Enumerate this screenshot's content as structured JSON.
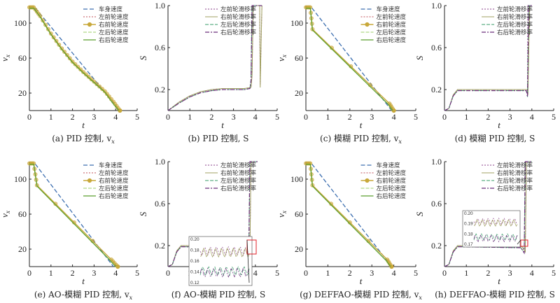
{
  "colors": {
    "body": "#3d6fb0",
    "fl": "#c0505a",
    "fr": "#c8a83a",
    "rl": "#9ecf6a",
    "rr": "#5a9e2e",
    "slip_fl": "#8a3e8a",
    "slip_fr": "#a0a060",
    "slip_rl": "#3a9e6a",
    "slip_rr": "#6a2e7a",
    "zoom_box": "#e0202a"
  },
  "chart_data": [
    {
      "type": "line",
      "caption": "(a) PID 控制, v",
      "caption_sub": "x",
      "xlabel": "t",
      "ylabel": "v",
      "ylabel_sub": "x",
      "xlim": [
        0,
        5
      ],
      "ylim": [
        0,
        120
      ],
      "xticks": [
        0,
        1,
        2,
        3,
        4,
        5
      ],
      "yticks": [
        20,
        60,
        100
      ],
      "legend": [
        "车身速度",
        "左前轮速度",
        "右前轮速度",
        "左后轮速度",
        "右后轮速度"
      ],
      "series": [
        {
          "key": "body",
          "x": [
            0,
            0.25,
            4.2
          ],
          "y": [
            118,
            118,
            0
          ]
        },
        {
          "key": "fl",
          "x": [
            0,
            0.2,
            0.5,
            1,
            1.5,
            2,
            2.5,
            3,
            3.5,
            3.9,
            4.2
          ],
          "y": [
            118,
            118,
            108,
            88,
            71,
            56,
            44,
            33,
            22,
            10,
            0
          ]
        },
        {
          "key": "fr",
          "x": [
            0,
            0.2,
            0.5,
            1,
            1.5,
            2,
            2.5,
            3,
            3.5,
            3.9,
            4.2
          ],
          "y": [
            118,
            118,
            108,
            88,
            71,
            56,
            44,
            33,
            22,
            10,
            0
          ]
        },
        {
          "key": "rl",
          "x": [
            0,
            0.2,
            0.5,
            1,
            1.5,
            2,
            2.5,
            3,
            3.5,
            3.85,
            4.15
          ],
          "y": [
            117,
            117,
            107,
            87,
            70,
            55,
            43,
            32,
            21,
            9,
            0
          ]
        },
        {
          "key": "rr",
          "x": [
            0,
            0.2,
            0.5,
            1,
            1.5,
            2,
            2.5,
            3,
            3.5,
            3.85,
            4.15
          ],
          "y": [
            117,
            117,
            107,
            87,
            70,
            55,
            43,
            32,
            21,
            9,
            0
          ]
        }
      ]
    },
    {
      "type": "line",
      "caption": "(b) PID 控制, S",
      "xlabel": "t",
      "ylabel": "S",
      "xlim": [
        0,
        5
      ],
      "ylim": [
        0,
        1
      ],
      "xticks": [
        0,
        1,
        2,
        3,
        4,
        5
      ],
      "yticks": [
        0.2,
        0.6,
        1.0
      ],
      "legend": [
        "左前轮滑移率",
        "右前轮滑移率",
        "左后轮滑移率",
        "右后轮滑移率"
      ],
      "series": [
        {
          "key": "slip_fl",
          "x": [
            0,
            0.5,
            1,
            1.5,
            2,
            2.5,
            3,
            3.5,
            3.8,
            3.85,
            3.9,
            4.2,
            4.22,
            4.3
          ],
          "y": [
            0,
            0.08,
            0.14,
            0.18,
            0.2,
            0.21,
            0.21,
            0.21,
            0.22,
            0.35,
            1,
            1,
            0.25,
            1
          ]
        },
        {
          "key": "slip_fr",
          "x": [
            0,
            0.5,
            1,
            1.5,
            2,
            2.5,
            3,
            3.5,
            3.8,
            3.85,
            3.9,
            4.2,
            4.22,
            4.3
          ],
          "y": [
            0,
            0.08,
            0.14,
            0.18,
            0.2,
            0.21,
            0.21,
            0.21,
            0.22,
            0.33,
            1,
            1,
            0.22,
            1
          ]
        },
        {
          "key": "slip_rl",
          "x": [
            0,
            0.5,
            1,
            1.5,
            2,
            2.5,
            3,
            3.5,
            3.75,
            3.8,
            3.85,
            4.25,
            4.3
          ],
          "y": [
            0,
            0.07,
            0.13,
            0.17,
            0.19,
            0.2,
            0.2,
            0.2,
            0.21,
            0.3,
            1,
            1,
            1
          ]
        },
        {
          "key": "slip_rr",
          "x": [
            0,
            0.5,
            1,
            1.5,
            2,
            2.5,
            3,
            3.5,
            3.75,
            3.8,
            3.85,
            4.25,
            4.3
          ],
          "y": [
            0,
            0.07,
            0.13,
            0.17,
            0.19,
            0.2,
            0.2,
            0.2,
            0.21,
            0.28,
            1,
            1,
            1
          ]
        }
      ]
    },
    {
      "type": "line",
      "caption": "(c) 模糊 PID 控制, v",
      "caption_sub": "x",
      "xlabel": "t",
      "ylabel": "v",
      "ylabel_sub": "x",
      "xlim": [
        0,
        5
      ],
      "ylim": [
        0,
        120
      ],
      "xticks": [
        0,
        1,
        2,
        3,
        4,
        5
      ],
      "yticks": [
        20,
        60,
        100
      ],
      "legend": [
        "车身速度",
        "左前轮速度",
        "右前轮速度",
        "左后轮速度",
        "右后轮速度"
      ],
      "series": [
        {
          "key": "body",
          "x": [
            0,
            0.25,
            3.9
          ],
          "y": [
            118,
            118,
            0
          ]
        },
        {
          "key": "fl",
          "x": [
            0,
            0.2,
            0.3,
            3.8,
            4.0
          ],
          "y": [
            118,
            118,
            93,
            8,
            0
          ]
        },
        {
          "key": "fr",
          "x": [
            0,
            0.2,
            0.3,
            3.8,
            4.0
          ],
          "y": [
            118,
            118,
            93,
            8,
            0
          ]
        },
        {
          "key": "rl",
          "x": [
            0,
            0.2,
            0.3,
            3.75,
            3.95
          ],
          "y": [
            117,
            117,
            92,
            7,
            0
          ]
        },
        {
          "key": "rr",
          "x": [
            0,
            0.2,
            0.3,
            3.75,
            3.95
          ],
          "y": [
            117,
            117,
            92,
            7,
            0
          ]
        }
      ]
    },
    {
      "type": "line",
      "caption": "(d) 模糊 PID 控制, S",
      "xlabel": "t",
      "ylabel": "S",
      "xlim": [
        0,
        5
      ],
      "ylim": [
        0,
        1
      ],
      "xticks": [
        0,
        1,
        2,
        3,
        4,
        5
      ],
      "yticks": [
        0.2,
        0.6,
        1.0
      ],
      "legend": [
        "左前轮滑移率",
        "右前轮滑移率",
        "左后轮滑移率",
        "右后轮滑移率"
      ],
      "series": [
        {
          "key": "slip_fl",
          "x": [
            0,
            0.2,
            0.4,
            0.6,
            3.8,
            3.82,
            3.9,
            4.0
          ],
          "y": [
            0,
            0.02,
            0.15,
            0.2,
            0.2,
            1,
            1,
            1
          ]
        },
        {
          "key": "slip_fr",
          "x": [
            0,
            0.2,
            0.4,
            0.6,
            3.8,
            3.82,
            3.9,
            4.0
          ],
          "y": [
            0,
            0.02,
            0.15,
            0.2,
            0.2,
            0.15,
            1,
            1
          ]
        },
        {
          "key": "slip_rl",
          "x": [
            0,
            0.2,
            0.4,
            0.6,
            3.75,
            3.8,
            3.85,
            4.0
          ],
          "y": [
            0,
            0.02,
            0.14,
            0.19,
            0.19,
            0.13,
            1,
            1
          ]
        },
        {
          "key": "slip_rr",
          "x": [
            0,
            0.2,
            0.4,
            0.6,
            3.75,
            3.8,
            3.85,
            4.0
          ],
          "y": [
            0,
            0.02,
            0.14,
            0.19,
            0.19,
            0.13,
            1,
            1
          ]
        }
      ]
    },
    {
      "type": "line",
      "caption": "(e) AO-模糊 PID 控制, v",
      "caption_sub": "x",
      "xlabel": "t",
      "ylabel": "v",
      "ylabel_sub": "x",
      "xlim": [
        0,
        5
      ],
      "ylim": [
        0,
        120
      ],
      "xticks": [
        0,
        1,
        2,
        3,
        4,
        5
      ],
      "yticks": [
        20,
        60,
        100
      ],
      "legend": [
        "车身速度",
        "左前轮速度",
        "右前轮速度",
        "左后轮速度",
        "右后轮速度"
      ],
      "series": [
        {
          "key": "body",
          "x": [
            0,
            0.25,
            3.9
          ],
          "y": [
            118,
            118,
            0
          ]
        },
        {
          "key": "fl",
          "x": [
            0,
            0.2,
            0.35,
            3.8,
            4.1
          ],
          "y": [
            118,
            118,
            93,
            8,
            0
          ]
        },
        {
          "key": "fr",
          "x": [
            0,
            0.2,
            0.35,
            3.8,
            4.1
          ],
          "y": [
            118,
            118,
            93,
            8,
            0
          ]
        },
        {
          "key": "rl",
          "x": [
            0,
            0.2,
            0.35,
            3.75,
            4.0
          ],
          "y": [
            117,
            117,
            92,
            7,
            0
          ]
        },
        {
          "key": "rr",
          "x": [
            0,
            0.2,
            0.35,
            3.75,
            4.0
          ],
          "y": [
            117,
            117,
            92,
            7,
            0
          ]
        }
      ]
    },
    {
      "type": "line",
      "caption": "(f) AO-模糊 PID 控制, S",
      "xlabel": "t",
      "ylabel": "S",
      "xlim": [
        0,
        5
      ],
      "ylim": [
        0,
        1
      ],
      "xticks": [
        0,
        1,
        2,
        3,
        4,
        5
      ],
      "yticks": [
        0.2,
        0.6,
        1.0
      ],
      "legend": [
        "左前轮滑移率",
        "右前轮滑移率",
        "左后轮滑移率",
        "右后轮滑移率"
      ],
      "inset_yticks": [
        0.2,
        0.18,
        0.16,
        0.14,
        0.12
      ],
      "series": [
        {
          "key": "slip_fl",
          "x": [
            0,
            0.2,
            0.4,
            0.6,
            3.6,
            3.75,
            3.8,
            4.0,
            4.1
          ],
          "y": [
            0,
            0.02,
            0.15,
            0.2,
            0.19,
            0.15,
            1,
            1,
            1
          ]
        },
        {
          "key": "slip_fr",
          "x": [
            0,
            0.2,
            0.4,
            0.6,
            3.6,
            3.75,
            3.8,
            4.0,
            4.1
          ],
          "y": [
            0,
            0.02,
            0.15,
            0.2,
            0.19,
            0.14,
            1,
            1,
            1
          ]
        },
        {
          "key": "slip_rl",
          "x": [
            0,
            0.2,
            0.4,
            0.6,
            3.55,
            3.7,
            3.75,
            4.1
          ],
          "y": [
            0,
            0.02,
            0.14,
            0.19,
            0.18,
            0.13,
            1,
            1
          ]
        },
        {
          "key": "slip_rr",
          "x": [
            0,
            0.2,
            0.4,
            0.6,
            3.55,
            3.7,
            3.75,
            4.1
          ],
          "y": [
            0,
            0.02,
            0.14,
            0.19,
            0.18,
            0.13,
            1,
            1
          ]
        }
      ]
    },
    {
      "type": "line",
      "caption": "(g) DEFFAO-模糊 PID 控制, v",
      "caption_sub": "x",
      "xlabel": "t",
      "ylabel": "v",
      "ylabel_sub": "x",
      "xlim": [
        0,
        5
      ],
      "ylim": [
        0,
        120
      ],
      "xticks": [
        0,
        1,
        2,
        3,
        4,
        5
      ],
      "yticks": [
        20,
        60,
        100
      ],
      "legend": [
        "车身速度",
        "左前轮速度",
        "右前轮速度",
        "左后轮速度",
        "右后轮速度"
      ],
      "series": [
        {
          "key": "body",
          "x": [
            0,
            0.25,
            3.9
          ],
          "y": [
            118,
            118,
            0
          ]
        },
        {
          "key": "fl",
          "x": [
            0,
            0.2,
            0.3,
            3.7,
            3.9
          ],
          "y": [
            118,
            118,
            93,
            8,
            0
          ]
        },
        {
          "key": "fr",
          "x": [
            0,
            0.2,
            0.3,
            3.7,
            3.9
          ],
          "y": [
            118,
            118,
            93,
            8,
            0
          ]
        },
        {
          "key": "rl",
          "x": [
            0,
            0.2,
            0.3,
            3.65,
            3.85
          ],
          "y": [
            117,
            117,
            92,
            7,
            0
          ]
        },
        {
          "key": "rr",
          "x": [
            0,
            0.2,
            0.3,
            3.65,
            3.85
          ],
          "y": [
            117,
            117,
            92,
            7,
            0
          ]
        }
      ]
    },
    {
      "type": "line",
      "caption": "(h) DEFFAO-模糊 PID 控制, S",
      "xlabel": "t",
      "ylabel": "S",
      "xlim": [
        0,
        5
      ],
      "ylim": [
        0,
        1
      ],
      "xticks": [
        0,
        1,
        2,
        3,
        4,
        5
      ],
      "yticks": [
        0.2,
        0.6,
        1.0
      ],
      "legend": [
        "左前轮滑移率",
        "右前轮滑移率",
        "左后轮滑移率",
        "右后轮滑移率"
      ],
      "inset_yticks": [
        0.2,
        0.19,
        0.18,
        0.17
      ],
      "series": [
        {
          "key": "slip_fl",
          "x": [
            0,
            0.2,
            0.4,
            0.6,
            3.55,
            3.7,
            3.75,
            4.0
          ],
          "y": [
            0,
            0.02,
            0.15,
            0.2,
            0.19,
            0.15,
            1,
            1
          ]
        },
        {
          "key": "slip_fr",
          "x": [
            0,
            0.2,
            0.4,
            0.6,
            3.55,
            3.7,
            3.75,
            4.0
          ],
          "y": [
            0,
            0.02,
            0.15,
            0.2,
            0.19,
            0.14,
            1,
            1
          ]
        },
        {
          "key": "slip_rl",
          "x": [
            0,
            0.2,
            0.4,
            0.6,
            3.5,
            3.65,
            3.7,
            4.0
          ],
          "y": [
            0,
            0.02,
            0.14,
            0.19,
            0.18,
            0.13,
            1,
            1
          ]
        },
        {
          "key": "slip_rr",
          "x": [
            0,
            0.2,
            0.4,
            0.6,
            3.5,
            3.65,
            3.7,
            4.0
          ],
          "y": [
            0,
            0.02,
            0.14,
            0.19,
            0.18,
            0.13,
            1,
            1
          ]
        }
      ]
    }
  ]
}
